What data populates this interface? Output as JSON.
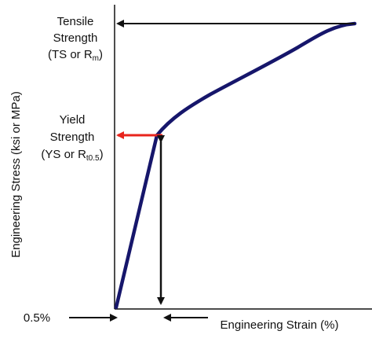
{
  "labels": {
    "tensile_line1": "Tensile",
    "tensile_line2": "Strength",
    "tensile_abbrev_open": "(TS or R",
    "tensile_sub": "m",
    "tensile_abbrev_close": ")",
    "yield_line1": "Yield",
    "yield_line2": "Strength",
    "yield_abbrev_open": "(YS or R",
    "yield_sub": "t0.5",
    "yield_abbrev_close": ")",
    "offset": "0.5%",
    "x_axis": "Engineering Strain (%)",
    "y_axis": "Engineering Stress (ksi or MPa)"
  },
  "colors": {
    "curve": "#16166b",
    "yield_arrow": "#e8241c",
    "arrows": "#111111",
    "axes": "#111111"
  }
}
